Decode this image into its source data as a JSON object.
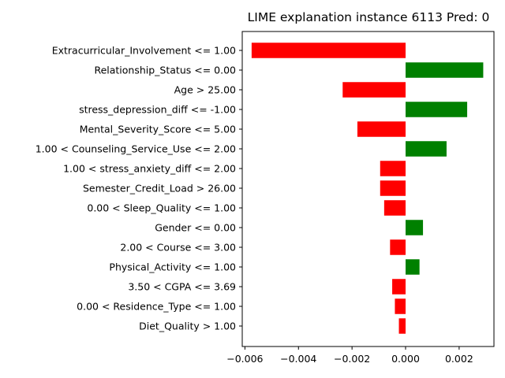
{
  "chart_data": {
    "type": "bar",
    "orientation": "horizontal",
    "title": "LIME explanation instance 6113 Pred: 0",
    "xlabel": "",
    "ylabel": "",
    "xlim": [
      -0.0061,
      0.0033
    ],
    "xticks": [
      -0.006,
      -0.004,
      -0.002,
      0.0,
      0.002
    ],
    "xtick_labels": [
      "−0.006",
      "−0.004",
      "−0.002",
      "0.000",
      "0.002"
    ],
    "grid": false,
    "positive_color": "#008000",
    "negative_color": "#ff0000",
    "categories": [
      "Extracurricular_Involvement <= 1.00",
      "Relationship_Status <= 0.00",
      "Age > 25.00",
      "stress_depression_diff <= -1.00",
      "Mental_Severity_Score <= 5.00",
      "1.00 < Counseling_Service_Use <= 2.00",
      "1.00 < stress_anxiety_diff <= 2.00",
      "Semester_Credit_Load > 26.00",
      "0.00 < Sleep_Quality <= 1.00",
      "Gender <= 0.00",
      "2.00 < Course <= 3.00",
      "Physical_Activity <= 1.00",
      "3.50 < CGPA <= 3.69",
      "0.00 < Residence_Type <= 1.00",
      "Diet_Quality > 1.00"
    ],
    "values": [
      -0.00575,
      0.0029,
      -0.00235,
      0.0023,
      -0.0018,
      0.00153,
      -0.00095,
      -0.00095,
      -0.0008,
      0.00065,
      -0.00058,
      0.00052,
      -0.0005,
      -0.0004,
      -0.00025
    ]
  }
}
